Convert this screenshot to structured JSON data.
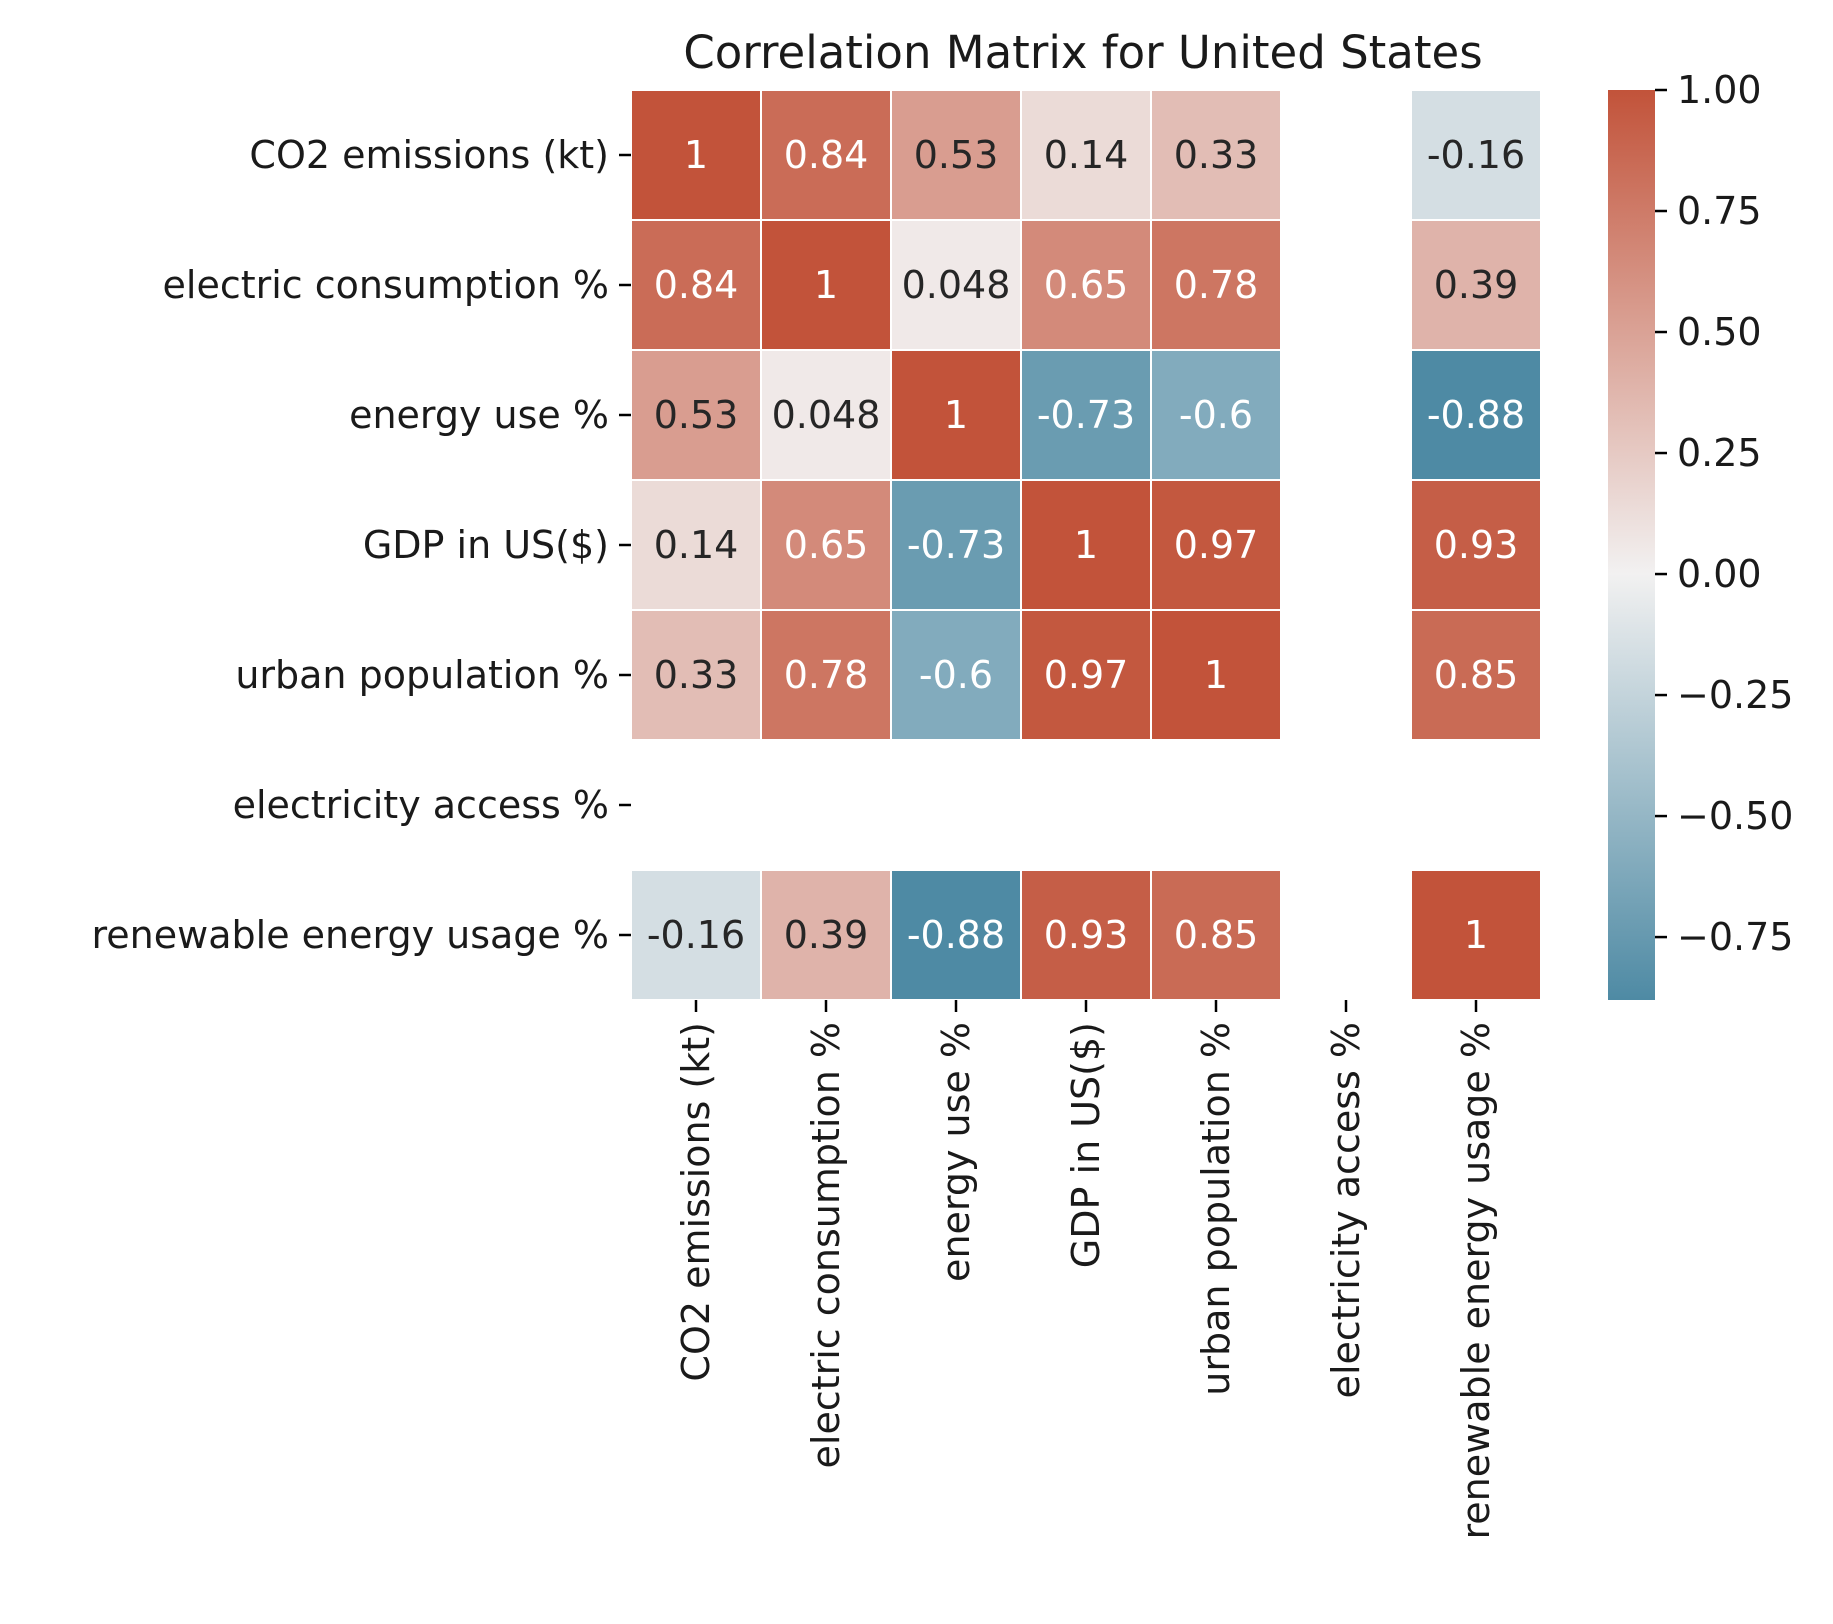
{
  "chart_data": {
    "type": "heatmap",
    "title": "Correlation Matrix for United States",
    "xlabel": "",
    "ylabel": "",
    "row_labels": [
      "CO2 emissions (kt)",
      "electric consumption %",
      "energy use %",
      "GDP in US($)",
      "urban population %",
      "electricity access %",
      "renewable energy usage %"
    ],
    "col_labels": [
      "CO2 emissions (kt)",
      "electric consumption %",
      "energy use %",
      "GDP in US($)",
      "urban population %",
      "electricity access %",
      "renewable energy usage %"
    ],
    "values": [
      [
        1,
        0.84,
        0.53,
        0.14,
        0.33,
        null,
        -0.16
      ],
      [
        0.84,
        1,
        0.048,
        0.65,
        0.78,
        null,
        0.39
      ],
      [
        0.53,
        0.048,
        1,
        -0.73,
        -0.6,
        null,
        -0.88
      ],
      [
        0.14,
        0.65,
        -0.73,
        1,
        0.97,
        null,
        0.93
      ],
      [
        0.33,
        0.78,
        -0.6,
        0.97,
        1,
        null,
        0.85
      ],
      [
        null,
        null,
        null,
        null,
        null,
        null,
        null
      ],
      [
        -0.16,
        0.39,
        -0.88,
        0.93,
        0.85,
        null,
        1
      ]
    ],
    "annotations": [
      [
        "1",
        "0.84",
        "0.53",
        "0.14",
        "0.33",
        "",
        "-0.16"
      ],
      [
        "0.84",
        "1",
        "0.048",
        "0.65",
        "0.78",
        "",
        "0.39"
      ],
      [
        "0.53",
        "0.048",
        "1",
        "-0.73",
        "-0.6",
        "",
        "-0.88"
      ],
      [
        "0.14",
        "0.65",
        "-0.73",
        "1",
        "0.97",
        "",
        "0.93"
      ],
      [
        "0.33",
        "0.78",
        "-0.6",
        "0.97",
        "1",
        "",
        "0.85"
      ],
      [
        "",
        "",
        "",
        "",
        "",
        "",
        ""
      ],
      [
        "-0.16",
        "0.39",
        "-0.88",
        "0.93",
        "0.85",
        "",
        "1"
      ]
    ],
    "colorbar": {
      "vmin": -0.88,
      "vmax": 1.0,
      "ticks": [
        1.0,
        0.75,
        0.5,
        0.25,
        0.0,
        -0.25,
        -0.5,
        -0.75
      ],
      "tick_labels": [
        "1.00",
        "0.75",
        "0.50",
        "0.25",
        "0.00",
        "−0.25",
        "−0.50",
        "−0.75"
      ]
    },
    "colors": {
      "negative": "#4e8aa4",
      "neutral": "#f2f1f1",
      "positive": "#c2533a"
    },
    "grid": false
  }
}
